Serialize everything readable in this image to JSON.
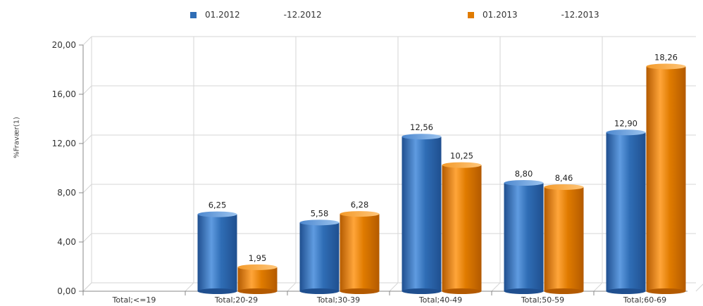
{
  "chart_data": {
    "type": "bar",
    "ylabel": "%Fravær(1)",
    "categories": [
      "Total;<=19",
      "Total;20-29",
      "Total;30-39",
      "Total;40-49",
      "Total;50-59",
      "Total;60-69"
    ],
    "ylim": [
      0,
      20
    ],
    "yticks": [
      "0,00",
      "4,00",
      "8,00",
      "12,00",
      "16,00",
      "20,00"
    ],
    "grid": true,
    "legend_position": "top",
    "series": [
      {
        "legend_from": "01.2012",
        "legend_to": "-12.2012",
        "color": "#2f6db5",
        "values": [
          null,
          6.25,
          5.58,
          12.56,
          8.8,
          12.9
        ],
        "labels": [
          "",
          "6,25",
          "5,58",
          "12,56",
          "8,80",
          "12,90"
        ]
      },
      {
        "legend_from": "01.2013",
        "legend_to": "-12.2013",
        "color": "#e07b00",
        "values": [
          null,
          1.95,
          6.28,
          10.25,
          8.46,
          18.26
        ],
        "labels": [
          "",
          "1,95",
          "6,28",
          "10,25",
          "8,46",
          "18,26"
        ]
      }
    ]
  }
}
